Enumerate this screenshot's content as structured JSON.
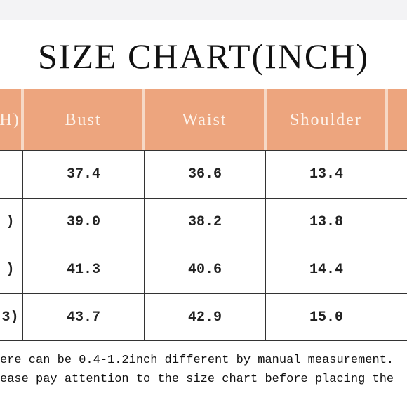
{
  "title": "SIZE CHART(INCH)",
  "table": {
    "header": [
      "H)",
      "Bust",
      "Waist",
      "Shoulder",
      ""
    ],
    "rows": [
      [
        "",
        "37.4",
        "36.6",
        "13.4",
        ""
      ],
      [
        ")",
        "39.0",
        "38.2",
        "13.8",
        ""
      ],
      [
        ")",
        "41.3",
        "40.6",
        "14.4",
        ""
      ],
      [
        "3)",
        "43.7",
        "42.9",
        "15.0",
        ""
      ]
    ]
  },
  "notes": [
    "ere can be 0.4-1.2inch different by manual measurement.",
    "ease pay attention to the size chart before placing the"
  ]
}
